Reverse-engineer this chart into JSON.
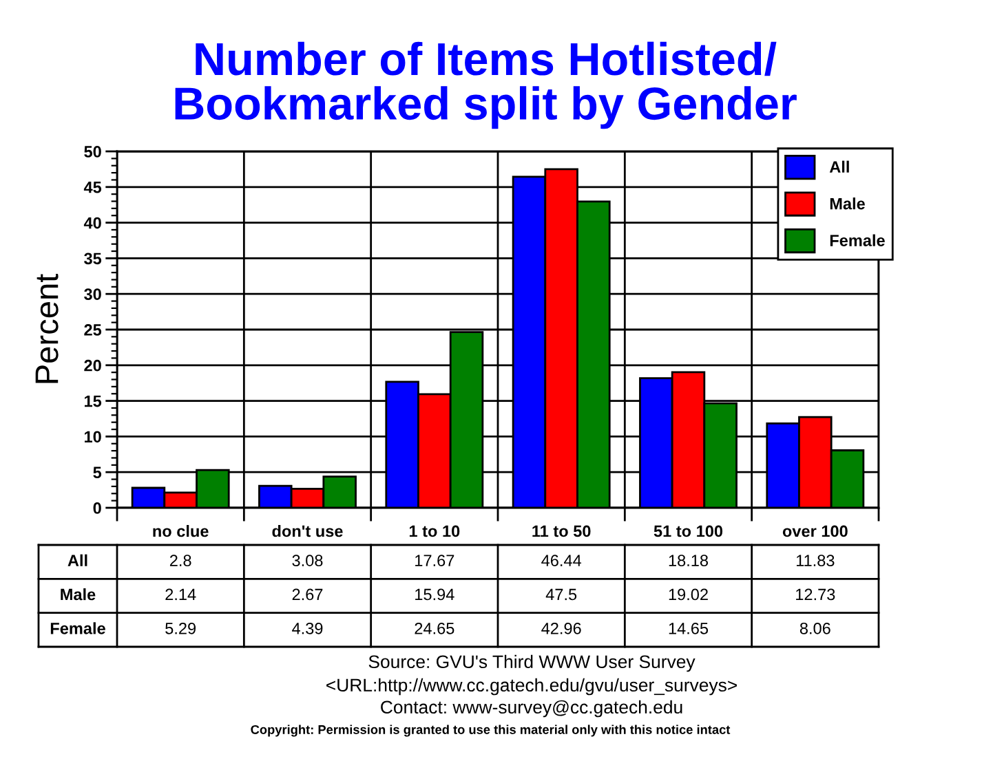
{
  "chart_data": {
    "type": "bar",
    "title": "Number of Items Hotlisted/\nBookmarked split by Gender",
    "ylabel": "Percent",
    "categories": [
      "no clue",
      "don't use",
      "1 to 10",
      "11 to 50",
      "51 to 100",
      "over 100"
    ],
    "series": [
      {
        "name": "All",
        "color": "#0000ff",
        "values": [
          2.8,
          3.08,
          17.67,
          46.44,
          18.18,
          11.83
        ]
      },
      {
        "name": "Male",
        "color": "#ff0000",
        "values": [
          2.14,
          2.67,
          15.94,
          47.5,
          19.02,
          12.73
        ]
      },
      {
        "name": "Female",
        "color": "#008000",
        "values": [
          5.29,
          4.39,
          24.65,
          42.96,
          14.65,
          8.06
        ]
      }
    ],
    "ylim": [
      0,
      50
    ],
    "yticks": [
      0,
      5,
      10,
      15,
      20,
      25,
      30,
      35,
      40,
      45,
      50
    ],
    "grid": true,
    "legend": "top right",
    "data_labels": true,
    "annotations": [
      "Source: GVU's Third WWW User Survey",
      "<URL:http://www.cc.gatech.edu/gvu/user_surveys>",
      "Contact: www-survey@cc.gatech.edu",
      "Copyright: Permission is granted to use this material only with this notice intact"
    ]
  }
}
